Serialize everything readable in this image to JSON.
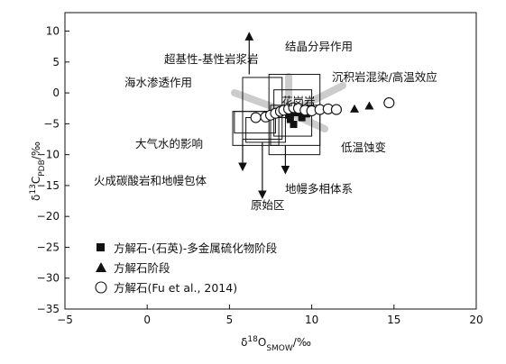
{
  "chart_data": {
    "type": "scatter",
    "xlabel_parts": {
      "main": "δ",
      "sup": "18",
      "base": "O",
      "sub": "SMOW",
      "unit": "/‰"
    },
    "ylabel_parts": {
      "main": "δ",
      "sup": "13",
      "base": "C",
      "sub": "PDB",
      "unit": "/‰"
    },
    "xlim": [
      -5,
      20
    ],
    "ylim": [
      -35,
      13
    ],
    "xticks": [
      -5,
      0,
      5,
      10,
      15,
      20
    ],
    "yticks": [
      10,
      5,
      0,
      -5,
      -10,
      -15,
      -20,
      -25,
      -30,
      -35
    ],
    "tick_labels_x": [
      "−5",
      "0",
      "5",
      "10",
      "15",
      "20"
    ],
    "tick_labels_y": [
      "10",
      "5",
      "0",
      "−5",
      "−10",
      "−15",
      "−20",
      "−25",
      "−30",
      "−35"
    ],
    "grid": false,
    "legend_position": "bottom-left",
    "series": [
      {
        "name": "方解石-(石英)-多金属硫化物阶段",
        "marker": "filled-square",
        "points": [
          [
            8.4,
            -3.0
          ],
          [
            8.6,
            -3.6
          ],
          [
            8.7,
            -4.3
          ],
          [
            8.9,
            -5.1
          ],
          [
            9.0,
            -3.2
          ],
          [
            9.4,
            -4.0
          ],
          [
            9.7,
            -3.4
          ],
          [
            9.3,
            -3.0
          ]
        ]
      },
      {
        "name": "方解石阶段",
        "marker": "filled-triangle",
        "points": [
          [
            12.6,
            -2.6
          ],
          [
            13.5,
            -2.1
          ]
        ]
      },
      {
        "name": "方解石(Fu et al., 2014)",
        "marker": "open-circle",
        "points": [
          [
            6.6,
            -4.0
          ],
          [
            7.2,
            -3.9
          ],
          [
            7.5,
            -3.6
          ],
          [
            7.8,
            -3.3
          ],
          [
            8.1,
            -3.0
          ],
          [
            8.3,
            -2.8
          ],
          [
            8.6,
            -2.6
          ],
          [
            8.9,
            -2.4
          ],
          [
            9.2,
            -2.5
          ],
          [
            9.6,
            -2.8
          ],
          [
            10.0,
            -2.9
          ],
          [
            10.5,
            -2.7
          ],
          [
            11.0,
            -2.6
          ],
          [
            11.5,
            -2.7
          ],
          [
            14.7,
            -1.6
          ]
        ]
      }
    ],
    "boxes": [
      {
        "name": "超基性-基性岩浆岩",
        "x": [
          5.8,
          8.2
        ],
        "y": [
          -7.5,
          2.5
        ]
      },
      {
        "name": "海水渗透作用",
        "x": [
          5.3,
          7.8
        ],
        "y": [
          -6.5,
          -3.0
        ]
      },
      {
        "name": "大气水的影响",
        "x": [
          5.2,
          8.0
        ],
        "y": [
          -8.5,
          -3.0
        ]
      },
      {
        "name": "原始区",
        "x": [
          6.0,
          8.4
        ],
        "y": [
          -8.0,
          -4.0
        ]
      },
      {
        "name": "花岗岩",
        "x": [
          7.7,
          10.0
        ],
        "y": [
          -7.0,
          0.5
        ]
      },
      {
        "name": "地幔多相体系",
        "x": [
          7.5,
          10.5
        ],
        "y": [
          -8.5,
          -2.0
        ]
      },
      {
        "name": "结晶分异作用",
        "x": [
          7.4,
          10.5
        ],
        "y": [
          -10.0,
          3.0
        ]
      }
    ],
    "annotations": [
      "结晶分异作用",
      "超基性-基性岩浆岩",
      "沉积岩混染/高温效应",
      "海水渗透作用",
      "花岗岩",
      "大气水的影响",
      "低温蚀变",
      "火成碳酸岩和地幔包体",
      "地幔多相体系",
      "原始区"
    ]
  }
}
